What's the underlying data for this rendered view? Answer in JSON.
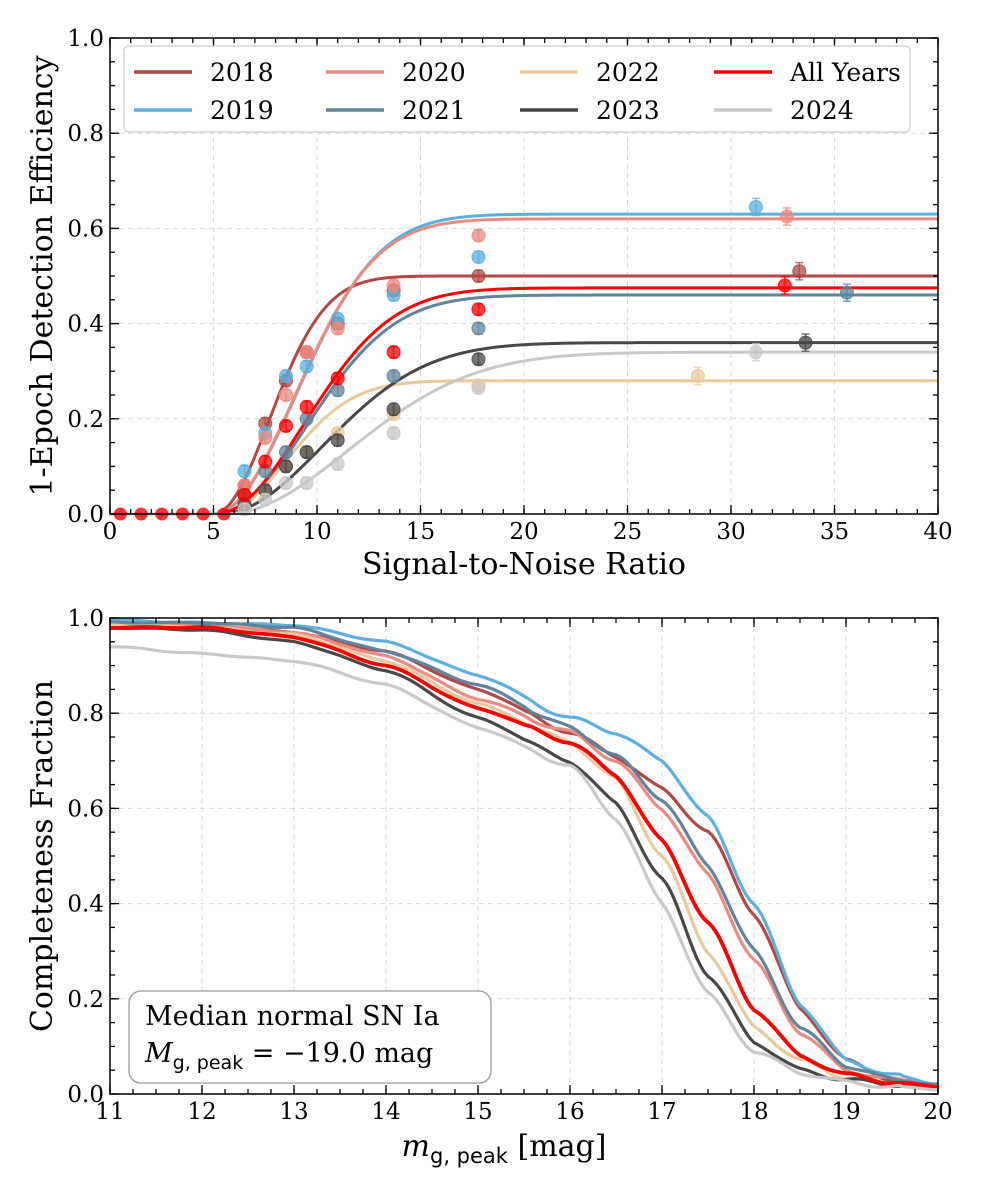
{
  "chart_data": [
    {
      "type": "scatter",
      "xlabel": "Signal-to-Noise Ratio",
      "ylabel": "1-Epoch Detection Efficiency",
      "xlim": [
        0,
        40
      ],
      "ylim": [
        0,
        1
      ],
      "xticks": [
        "0",
        "5",
        "10",
        "15",
        "20",
        "25",
        "30",
        "35",
        "40"
      ],
      "yticks": [
        "0.0",
        "0.2",
        "0.4",
        "0.6",
        "0.8",
        "1.0"
      ],
      "grid": true,
      "legend": {
        "position": "top",
        "columns": 4,
        "entries": [
          "2018",
          "2019",
          "2020",
          "2021",
          "2022",
          "2023",
          "All Years",
          "2024"
        ]
      },
      "series": [
        {
          "name": "2018",
          "color": "#b24745",
          "fit": {
            "plateau": 0.5,
            "x0": 5.0,
            "scale": 3.8
          },
          "points": [
            [
              6.5,
              0.06
            ],
            [
              7.5,
              0.19
            ],
            [
              8.5,
              0.28
            ],
            [
              9.5,
              0.34
            ],
            [
              11.0,
              0.4
            ],
            [
              13.7,
              0.47
            ],
            [
              17.8,
              0.5
            ],
            [
              33.3,
              0.51
            ]
          ]
        },
        {
          "name": "2019",
          "color": "#5aafe0",
          "fit": {
            "plateau": 0.63,
            "x0": 5.0,
            "scale": 5.6
          },
          "points": [
            [
              6.5,
              0.09
            ],
            [
              7.5,
              0.17
            ],
            [
              8.5,
              0.29
            ],
            [
              9.5,
              0.31
            ],
            [
              11.0,
              0.41
            ],
            [
              13.7,
              0.46
            ],
            [
              17.8,
              0.54
            ],
            [
              31.2,
              0.645
            ]
          ]
        },
        {
          "name": "2020",
          "color": "#ec8a80",
          "fit": {
            "plateau": 0.62,
            "x0": 5.0,
            "scale": 5.5
          },
          "points": [
            [
              6.5,
              0.06
            ],
            [
              7.5,
              0.16
            ],
            [
              8.5,
              0.25
            ],
            [
              9.5,
              0.34
            ],
            [
              11.0,
              0.39
            ],
            [
              13.7,
              0.48
            ],
            [
              17.8,
              0.585
            ],
            [
              32.7,
              0.625
            ]
          ]
        },
        {
          "name": "2021",
          "color": "#60849c",
          "fit": {
            "plateau": 0.46,
            "x0": 5.2,
            "scale": 6.0
          },
          "points": [
            [
              6.5,
              0.04
            ],
            [
              7.5,
              0.09
            ],
            [
              8.5,
              0.13
            ],
            [
              9.5,
              0.2
            ],
            [
              11.0,
              0.26
            ],
            [
              13.7,
              0.29
            ],
            [
              17.8,
              0.39
            ],
            [
              35.6,
              0.465
            ]
          ]
        },
        {
          "name": "2022",
          "color": "#e8c99a",
          "fit": {
            "plateau": 0.28,
            "x0": 5.3,
            "scale": 4.5
          },
          "points": [
            [
              6.5,
              0.02
            ],
            [
              7.5,
              0.05
            ],
            [
              8.5,
              0.1
            ],
            [
              9.5,
              0.13
            ],
            [
              11.0,
              0.17
            ],
            [
              13.7,
              0.21
            ],
            [
              17.8,
              0.27
            ],
            [
              28.4,
              0.29
            ]
          ]
        },
        {
          "name": "2023",
          "color": "#474747",
          "fit": {
            "plateau": 0.36,
            "x0": 5.3,
            "scale": 7.0
          },
          "points": [
            [
              6.5,
              0.02
            ],
            [
              7.5,
              0.05
            ],
            [
              8.5,
              0.1
            ],
            [
              9.5,
              0.13
            ],
            [
              11.0,
              0.155
            ],
            [
              13.7,
              0.22
            ],
            [
              17.8,
              0.325
            ],
            [
              33.6,
              0.36
            ]
          ]
        },
        {
          "name": "All Years",
          "color": "#ff0000",
          "fit": {
            "plateau": 0.475,
            "x0": 5.1,
            "scale": 6.0
          },
          "points": [
            [
              6.5,
              0.04
            ],
            [
              7.5,
              0.11
            ],
            [
              8.5,
              0.185
            ],
            [
              9.5,
              0.225
            ],
            [
              11.0,
              0.285
            ],
            [
              13.7,
              0.34
            ],
            [
              17.8,
              0.43
            ],
            [
              32.6,
              0.48
            ]
          ]
        },
        {
          "name": "2024",
          "color": "#c8c8c8",
          "fit": {
            "plateau": 0.34,
            "x0": 5.5,
            "scale": 8.5
          },
          "points": [
            [
              6.5,
              0.01
            ],
            [
              7.5,
              0.03
            ],
            [
              8.5,
              0.065
            ],
            [
              9.5,
              0.065
            ],
            [
              11.0,
              0.105
            ],
            [
              13.7,
              0.17
            ],
            [
              17.8,
              0.265
            ],
            [
              31.2,
              0.34
            ]
          ]
        }
      ],
      "zero_points_x": [
        0.5,
        1.5,
        2.5,
        3.5,
        4.5,
        5.5
      ]
    },
    {
      "type": "line",
      "xlabel": "m",
      "xlabel_sub": "g, peak",
      "xlabel_unit": " [mag]",
      "ylabel": "Completeness Fraction",
      "xlim": [
        11,
        20
      ],
      "ylim": [
        0,
        1
      ],
      "xticks": [
        "11",
        "12",
        "13",
        "14",
        "15",
        "16",
        "17",
        "18",
        "19",
        "20"
      ],
      "yticks": [
        "0.0",
        "0.2",
        "0.4",
        "0.6",
        "0.8",
        "1.0"
      ],
      "grid": true,
      "annotation": {
        "line1": "Median normal SN Ia",
        "line2_main": "M",
        "line2_sub": "g, peak",
        "line2_rest": " = −19.0 mag",
        "position": "bottom-left"
      },
      "series": [
        {
          "name": "2018",
          "color": "#b24745",
          "x": [
            11,
            12,
            13,
            14,
            15,
            16,
            16.5,
            17,
            17.5,
            18,
            18.5,
            19,
            19.5,
            20
          ],
          "y": [
            0.99,
            0.985,
            0.97,
            0.93,
            0.85,
            0.76,
            0.71,
            0.64,
            0.55,
            0.38,
            0.18,
            0.07,
            0.03,
            0.02
          ]
        },
        {
          "name": "2019",
          "color": "#5aafe0",
          "x": [
            11,
            12,
            13,
            14,
            15,
            16,
            16.5,
            17,
            17.5,
            18,
            18.5,
            19,
            19.5,
            20
          ],
          "y": [
            0.995,
            0.99,
            0.985,
            0.95,
            0.88,
            0.79,
            0.76,
            0.7,
            0.58,
            0.4,
            0.19,
            0.07,
            0.04,
            0.02
          ]
        },
        {
          "name": "2020",
          "color": "#ec8a80",
          "x": [
            11,
            12,
            13,
            14,
            15,
            16,
            16.5,
            17,
            17.5,
            18,
            18.5,
            19,
            19.5,
            20
          ],
          "y": [
            0.99,
            0.985,
            0.97,
            0.92,
            0.83,
            0.76,
            0.7,
            0.6,
            0.46,
            0.28,
            0.13,
            0.05,
            0.03,
            0.02
          ]
        },
        {
          "name": "2021",
          "color": "#60849c",
          "x": [
            11,
            12,
            13,
            14,
            15,
            16,
            16.5,
            17,
            17.5,
            18,
            18.5,
            19,
            19.5,
            20
          ],
          "y": [
            0.99,
            0.99,
            0.98,
            0.93,
            0.86,
            0.77,
            0.71,
            0.62,
            0.48,
            0.3,
            0.14,
            0.06,
            0.03,
            0.02
          ]
        },
        {
          "name": "2022",
          "color": "#e8c99a",
          "x": [
            11,
            12,
            13,
            14,
            15,
            16,
            16.5,
            17,
            17.5,
            18,
            18.5,
            19,
            19.5,
            20
          ],
          "y": [
            0.985,
            0.98,
            0.965,
            0.91,
            0.82,
            0.74,
            0.66,
            0.5,
            0.3,
            0.14,
            0.07,
            0.035,
            0.02,
            0.015
          ]
        },
        {
          "name": "2023",
          "color": "#474747",
          "x": [
            11,
            12,
            13,
            14,
            15,
            16,
            16.5,
            17,
            17.5,
            18,
            18.5,
            19,
            19.5,
            20
          ],
          "y": [
            0.98,
            0.975,
            0.95,
            0.89,
            0.79,
            0.7,
            0.61,
            0.45,
            0.25,
            0.11,
            0.05,
            0.03,
            0.02,
            0.015
          ]
        },
        {
          "name": "All Years",
          "color": "#ff0000",
          "x": [
            11,
            12,
            13,
            14,
            15,
            16,
            16.5,
            17,
            17.5,
            18,
            18.5,
            19,
            19.5,
            20
          ],
          "y": [
            0.98,
            0.98,
            0.96,
            0.9,
            0.81,
            0.74,
            0.67,
            0.53,
            0.36,
            0.18,
            0.08,
            0.04,
            0.025,
            0.015
          ]
        },
        {
          "name": "2024",
          "color": "#c8c8c8",
          "x": [
            11,
            12,
            13,
            14,
            15,
            16,
            16.5,
            17,
            17.5,
            18,
            18.5,
            19,
            19.5,
            20
          ],
          "y": [
            0.94,
            0.925,
            0.91,
            0.86,
            0.77,
            0.69,
            0.58,
            0.4,
            0.21,
            0.09,
            0.045,
            0.025,
            0.015,
            0.01
          ]
        }
      ]
    }
  ]
}
